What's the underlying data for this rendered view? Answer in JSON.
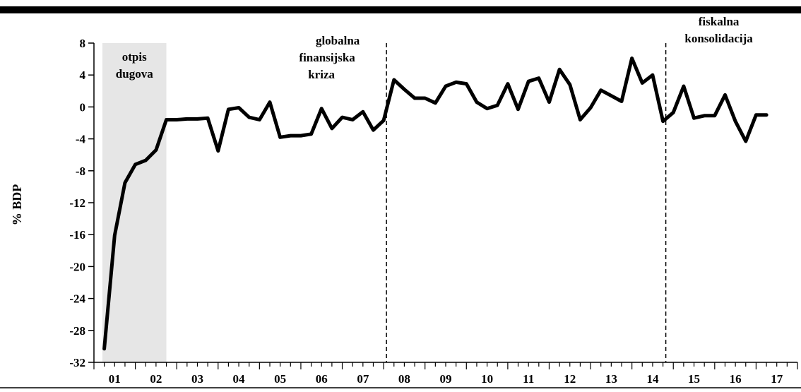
{
  "chart_data": {
    "type": "line",
    "ylabel": "% BDP",
    "ylim": [
      -32,
      8
    ],
    "yticks": [
      "8",
      "4",
      "0",
      "-4",
      "-8",
      "-12",
      "-16",
      "-20",
      "-24",
      "-28",
      "-32"
    ],
    "x_labels": [
      "01",
      "02",
      "03",
      "04",
      "05",
      "06",
      "07",
      "08",
      "09",
      "10",
      "11",
      "12",
      "13",
      "14",
      "15",
      "16",
      "17"
    ],
    "x_start_year": 2001,
    "shaded_region": {
      "label": [
        "otpis",
        "dugova"
      ],
      "from": 2001.0,
      "to": 2002.75
    },
    "vlines": [
      {
        "at": 2008.0,
        "label": [
          "globalna",
          "finansijska",
          "kriza"
        ]
      },
      {
        "at": 2014.75,
        "label": [
          "fiskalna",
          "konsolidacija"
        ]
      }
    ],
    "grid": false,
    "series": [
      {
        "x": [
          2001.25,
          2001.5,
          2001.75,
          2002.0,
          2002.25,
          2002.5,
          2002.75,
          2003.0,
          2003.25,
          2003.5,
          2003.75,
          2004.0,
          2004.25,
          2004.5,
          2004.75,
          2005.0,
          2005.25,
          2005.5,
          2005.75,
          2006.0,
          2006.25,
          2006.5,
          2006.75,
          2007.0,
          2007.25,
          2007.5,
          2007.75,
          2008.0,
          2008.25,
          2008.5,
          2008.75,
          2009.0,
          2009.25,
          2009.5,
          2009.75,
          2010.0,
          2010.25,
          2010.5,
          2010.75,
          2011.0,
          2011.25,
          2011.5,
          2011.75,
          2012.0,
          2012.25,
          2012.5,
          2012.75,
          2013.0,
          2013.25,
          2013.5,
          2013.75,
          2014.0,
          2014.25,
          2014.5,
          2014.75,
          2015.0,
          2015.25,
          2015.5,
          2015.75,
          2016.0,
          2016.25,
          2016.5,
          2016.75,
          2017.0,
          2017.25
        ],
        "y": [
          -30.3,
          -16.1,
          -9.5,
          -7.2,
          -6.7,
          -5.4,
          -1.6,
          -1.6,
          -1.5,
          -1.5,
          -1.4,
          -5.5,
          -0.3,
          -0.1,
          -1.3,
          -1.6,
          0.6,
          -3.8,
          -3.6,
          -3.6,
          -3.4,
          -0.2,
          -2.7,
          -1.3,
          -1.6,
          -0.6,
          -2.9,
          -1.7,
          3.4,
          2.2,
          1.1,
          1.1,
          0.5,
          2.6,
          3.1,
          2.9,
          0.6,
          -0.2,
          0.2,
          2.9,
          -0.3,
          3.2,
          3.6,
          0.6,
          4.7,
          2.8,
          -1.6,
          -0.1,
          2.1,
          1.4,
          0.7,
          6.1,
          3.0,
          4.0,
          -1.8,
          -0.7,
          2.6,
          -1.4,
          -1.1,
          -1.1,
          1.5,
          -1.8,
          -4.3,
          -1.0,
          -1.0
        ]
      }
    ]
  }
}
